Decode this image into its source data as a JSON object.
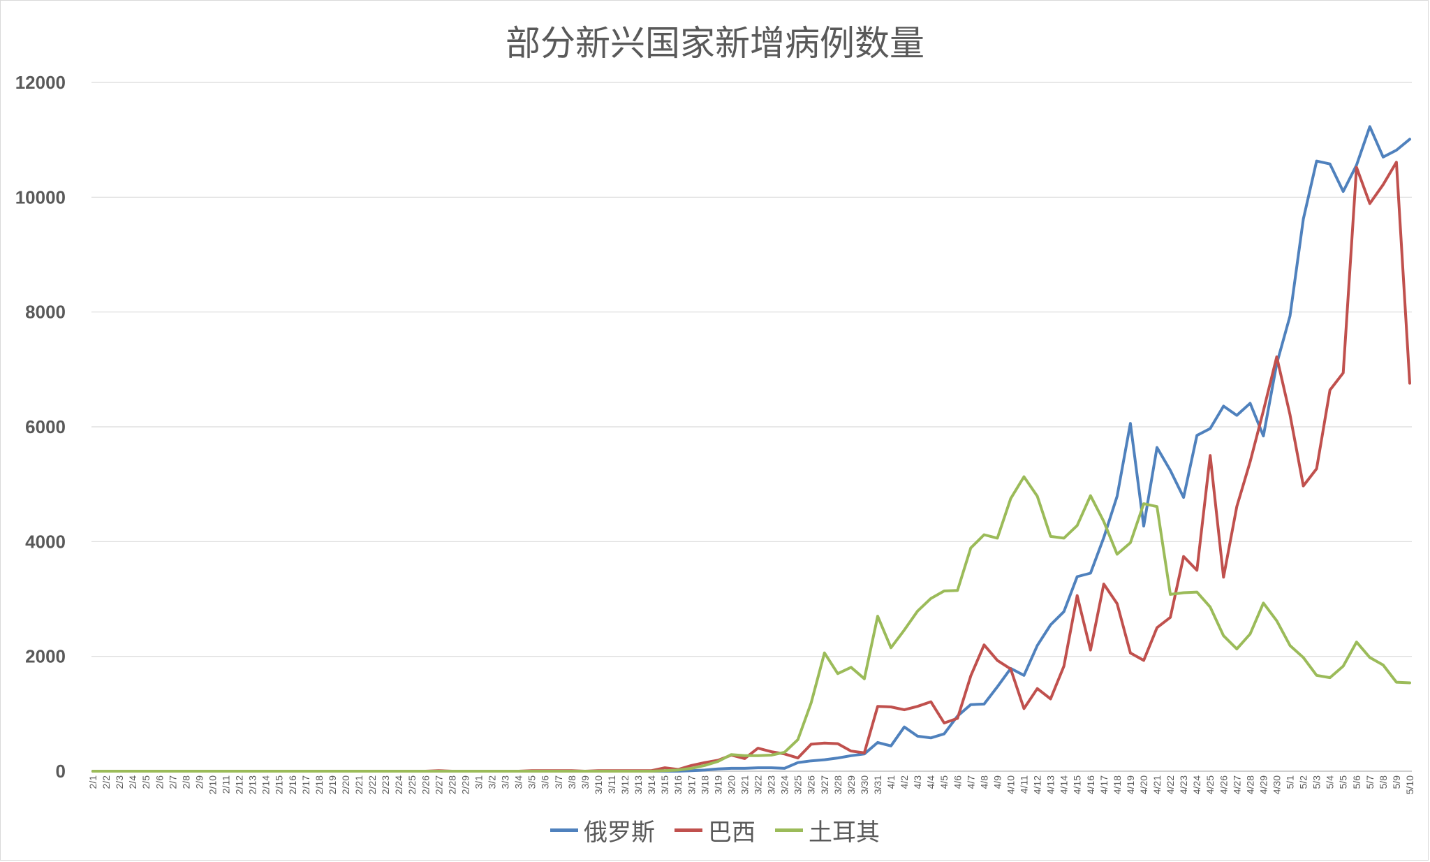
{
  "chart_data": {
    "type": "line",
    "title": "部分新兴国家新增病例数量",
    "xlabel": "",
    "ylabel": "",
    "ylim": [
      0,
      12000
    ],
    "yticks": [
      0,
      2000,
      4000,
      6000,
      8000,
      10000,
      12000
    ],
    "grid": true,
    "legend_position": "bottom",
    "categories": [
      "2/1",
      "2/2",
      "2/3",
      "2/4",
      "2/5",
      "2/6",
      "2/7",
      "2/8",
      "2/9",
      "2/10",
      "2/11",
      "2/12",
      "2/13",
      "2/14",
      "2/15",
      "2/16",
      "2/17",
      "2/18",
      "2/19",
      "2/20",
      "2/21",
      "2/22",
      "2/23",
      "2/24",
      "2/25",
      "2/26",
      "2/27",
      "2/28",
      "2/29",
      "3/1",
      "3/2",
      "3/3",
      "3/4",
      "3/5",
      "3/6",
      "3/7",
      "3/8",
      "3/9",
      "3/10",
      "3/11",
      "3/12",
      "3/13",
      "3/14",
      "3/15",
      "3/16",
      "3/17",
      "3/18",
      "3/19",
      "3/20",
      "3/21",
      "3/22",
      "3/23",
      "3/24",
      "3/25",
      "3/26",
      "3/27",
      "3/28",
      "3/29",
      "3/30",
      "3/31",
      "4/1",
      "4/2",
      "4/3",
      "4/4",
      "4/5",
      "4/6",
      "4/7",
      "4/8",
      "4/9",
      "4/10",
      "4/11",
      "4/12",
      "4/13",
      "4/14",
      "4/15",
      "4/16",
      "4/17",
      "4/18",
      "4/19",
      "4/20",
      "4/21",
      "4/22",
      "4/23",
      "4/24",
      "4/25",
      "4/26",
      "4/27",
      "4/28",
      "4/29",
      "4/30",
      "5/1",
      "5/2",
      "5/3",
      "5/4",
      "5/5",
      "5/6",
      "5/7",
      "5/8",
      "5/9",
      "5/10"
    ],
    "x_tick_labels": [
      "2/1",
      "2/2",
      "2/3",
      "2/4",
      "2/5",
      "2/6",
      "2/7",
      "2/8",
      "2/9",
      "2/10",
      "2/11",
      "2/12",
      "2/13",
      "2/14",
      "2/15",
      "2/16",
      "2/17",
      "2/18",
      "2/19",
      "2/20",
      "2/21",
      "2/22",
      "2/23",
      "2/24",
      "2/25",
      "2/26",
      "2/27",
      "2/28",
      "2/29",
      "3/1",
      "3/2",
      "3/3",
      "3/4",
      "3/5",
      "3/6",
      "3/7",
      "3/8",
      "3/9",
      "3/10",
      "3/11",
      "3/12",
      "3/13",
      "3/14",
      "3/15",
      "3/16",
      "3/17",
      "3/18",
      "3/19",
      "3/20",
      "3/21",
      "3/22",
      "3/23",
      "3/24",
      "3/25",
      "3/26",
      "3/27",
      "3/28",
      "3/29",
      "3/30",
      "3/31",
      "4/1",
      "4/2",
      "4/3",
      "4/4",
      "4/5",
      "4/6",
      "4/7",
      "4/8",
      "4/9",
      "4/10",
      "4/11",
      "4/12",
      "4/13",
      "4/14",
      "4/15",
      "4/16",
      "4/17",
      "4/18",
      "4/19",
      "4/20",
      "4/21",
      "4/22",
      "4/23",
      "4/24",
      "4/25",
      "4/26",
      "4/27",
      "4/28",
      "4/29",
      "4/30",
      "5/1",
      "5/2",
      "5/3",
      "5/4",
      "5/5",
      "5/6",
      "5/7",
      "5/8",
      "5/9",
      "5/10"
    ],
    "series": [
      {
        "name": "俄罗斯",
        "color": "#4f81bd",
        "values": [
          0,
          0,
          0,
          0,
          0,
          0,
          0,
          0,
          0,
          0,
          0,
          0,
          0,
          0,
          0,
          0,
          0,
          0,
          0,
          0,
          0,
          0,
          0,
          0,
          0,
          0,
          0,
          0,
          0,
          0,
          0,
          0,
          0,
          0,
          0,
          0,
          0,
          0,
          0,
          0,
          0,
          0,
          0,
          0,
          0,
          10,
          20,
          40,
          50,
          50,
          60,
          60,
          50,
          150,
          180,
          200,
          230,
          270,
          300,
          500,
          440,
          770,
          610,
          580,
          650,
          960,
          1160,
          1170,
          1470,
          1790,
          1670,
          2190,
          2550,
          2780,
          3390,
          3450,
          4070,
          4790,
          6060,
          4270,
          5640,
          5240,
          4770,
          5850,
          5970,
          6360,
          6200,
          6410,
          5840,
          7100,
          7930,
          9620,
          10630,
          10580,
          10100,
          10560,
          11230,
          10700,
          10820,
          11010
        ]
      },
      {
        "name": "巴西",
        "color": "#c0504d",
        "values": [
          0,
          0,
          0,
          0,
          0,
          0,
          0,
          0,
          0,
          0,
          0,
          0,
          0,
          0,
          0,
          0,
          0,
          0,
          0,
          0,
          0,
          0,
          0,
          0,
          0,
          0,
          10,
          0,
          0,
          0,
          0,
          0,
          0,
          10,
          10,
          10,
          10,
          0,
          10,
          10,
          10,
          10,
          10,
          60,
          30,
          100,
          150,
          190,
          280,
          220,
          400,
          340,
          300,
          230,
          470,
          490,
          480,
          350,
          320,
          1130,
          1120,
          1070,
          1130,
          1210,
          840,
          920,
          1660,
          2200,
          1930,
          1780,
          1090,
          1440,
          1260,
          1830,
          3060,
          2110,
          3260,
          2920,
          2060,
          1930,
          2500,
          2680,
          3740,
          3500,
          5500,
          3380,
          4610,
          5390,
          6280,
          7220,
          6210,
          4970,
          5270,
          6640,
          6940,
          10520,
          9890,
          10220,
          10610,
          6760
        ]
      },
      {
        "name": "土耳其",
        "color": "#9bbb59",
        "values": [
          0,
          0,
          0,
          0,
          0,
          0,
          0,
          0,
          0,
          0,
          0,
          0,
          0,
          0,
          0,
          0,
          0,
          0,
          0,
          0,
          0,
          0,
          0,
          0,
          0,
          0,
          0,
          0,
          0,
          0,
          0,
          0,
          0,
          0,
          0,
          0,
          0,
          0,
          0,
          0,
          0,
          0,
          0,
          10,
          20,
          50,
          100,
          170,
          290,
          270,
          270,
          280,
          330,
          550,
          1190,
          2060,
          1700,
          1810,
          1610,
          2700,
          2150,
          2460,
          2790,
          3010,
          3140,
          3150,
          3890,
          4120,
          4060,
          4750,
          5130,
          4790,
          4090,
          4060,
          4280,
          4800,
          4350,
          3780,
          3980,
          4660,
          4610,
          3080,
          3110,
          3120,
          2860,
          2360,
          2130,
          2390,
          2930,
          2620,
          2190,
          1980,
          1670,
          1630,
          1830,
          2250,
          1980,
          1850,
          1550,
          1540
        ]
      }
    ]
  }
}
